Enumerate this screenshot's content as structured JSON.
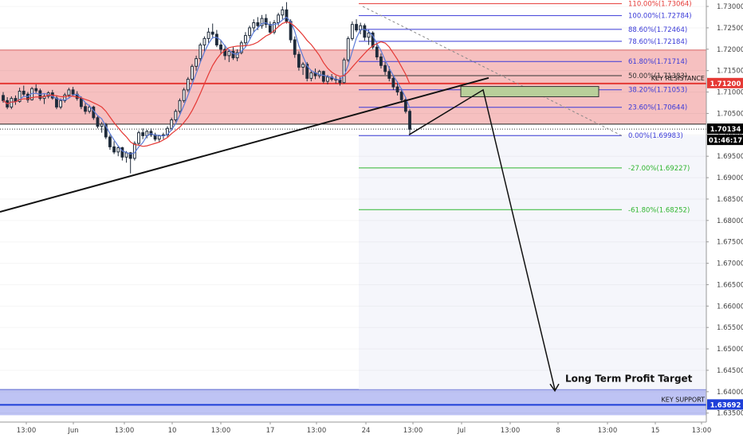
{
  "chart_data": {
    "type": "candlestick",
    "symbol": "",
    "y_range": [
      1.6329,
      1.7315
    ],
    "y_ticks": [
      "1.63500",
      "1.64000",
      "1.64500",
      "1.65000",
      "1.65500",
      "1.66000",
      "1.66500",
      "1.67000",
      "1.67500",
      "1.68000",
      "1.68500",
      "1.69000",
      "1.69500",
      "1.70000",
      "1.70500",
      "1.71000",
      "1.71500",
      "1.72000",
      "1.72500",
      "1.73000"
    ],
    "x_ticks": [
      "13:00",
      "Jun",
      "13:00",
      "10",
      "13:00",
      "17",
      "13:00",
      "24",
      "13:00",
      "Jul",
      "13:00",
      "8",
      "13:00",
      "15",
      "13:00"
    ],
    "price_badges": [
      {
        "label": "1.71200",
        "value": 1.712,
        "color": "#e53935",
        "text_color": "#ffffff"
      },
      {
        "label": "1.70134",
        "value": 1.70134,
        "color": "#000000",
        "text_color": "#ffffff"
      },
      {
        "label": "01:46:17",
        "value": 1.6992,
        "color": "#000000",
        "text_color": "#ffffff"
      },
      {
        "label": "1.63692",
        "value": 1.63692,
        "color": "#1e3fd8",
        "text_color": "#ffffff"
      }
    ],
    "fibonacci_levels": [
      {
        "label": "110.00%(1.73064)",
        "value": 1.73064,
        "color": "#e53935"
      },
      {
        "label": "100.00%(1.72784)",
        "value": 1.72784,
        "color": "#3a3ad8"
      },
      {
        "label": "88.60%(1.72464)",
        "value": 1.72464,
        "color": "#3a3ad8"
      },
      {
        "label": "78.60%(1.72184)",
        "value": 1.72184,
        "color": "#3a3ad8"
      },
      {
        "label": "61.80%(1.71714)",
        "value": 1.71714,
        "color": "#3a3ad8"
      },
      {
        "label": "50.00%(1.71383)",
        "value": 1.71383,
        "color": "#333333"
      },
      {
        "label": "38.20%(1.71053)",
        "value": 1.71053,
        "color": "#3a3ad8"
      },
      {
        "label": "23.60%(1.70644)",
        "value": 1.70644,
        "color": "#3a3ad8"
      },
      {
        "label": "0.00%(1.69983)",
        "value": 1.69983,
        "color": "#3a3ad8"
      },
      {
        "label": "-27.00%(1.69227)",
        "value": 1.69227,
        "color": "#2fb52f"
      },
      {
        "label": "-61.80%(1.68252)",
        "value": 1.68252,
        "color": "#2fb52f"
      }
    ],
    "zones": {
      "resistance": {
        "label": "KEY RESISTANCE",
        "low": 1.7025,
        "high": 1.7198,
        "color": "#f5b5b5",
        "line": 1.712
      },
      "support": {
        "label": "KEY SUPPORT",
        "low": 1.6345,
        "high": 1.6405,
        "color": "#b7bdf3",
        "line": 1.63692
      },
      "entry_box": {
        "low": 1.7089,
        "high": 1.7113,
        "color": "#b9cf9a"
      }
    },
    "annotations": {
      "target_label": "Long Term Profit Target"
    },
    "candles": [
      [
        1.7092,
        1.71,
        1.7075,
        1.708
      ],
      [
        1.708,
        1.7088,
        1.706,
        1.7065
      ],
      [
        1.7065,
        1.709,
        1.706,
        1.7085
      ],
      [
        1.7085,
        1.7092,
        1.707,
        1.7078
      ],
      [
        1.7078,
        1.711,
        1.7075,
        1.7102
      ],
      [
        1.7102,
        1.7115,
        1.709,
        1.7095
      ],
      [
        1.7095,
        1.71,
        1.7075,
        1.7082
      ],
      [
        1.7082,
        1.7112,
        1.708,
        1.7108
      ],
      [
        1.7108,
        1.7118,
        1.7098,
        1.7103
      ],
      [
        1.7103,
        1.7108,
        1.708,
        1.7085
      ],
      [
        1.7085,
        1.7095,
        1.7072,
        1.709
      ],
      [
        1.709,
        1.7102,
        1.7085,
        1.7098
      ],
      [
        1.7098,
        1.7105,
        1.7082,
        1.7086
      ],
      [
        1.7086,
        1.7092,
        1.706,
        1.7065
      ],
      [
        1.7065,
        1.7085,
        1.706,
        1.708
      ],
      [
        1.708,
        1.7098,
        1.7075,
        1.7093
      ],
      [
        1.7093,
        1.711,
        1.7088,
        1.7105
      ],
      [
        1.7105,
        1.7112,
        1.709,
        1.7095
      ],
      [
        1.7095,
        1.7102,
        1.708,
        1.7085
      ],
      [
        1.7085,
        1.709,
        1.706,
        1.7066
      ],
      [
        1.7066,
        1.7075,
        1.7048,
        1.7055
      ],
      [
        1.7055,
        1.707,
        1.705,
        1.7065
      ],
      [
        1.7065,
        1.7068,
        1.7035,
        1.704
      ],
      [
        1.704,
        1.7045,
        1.7015,
        1.702
      ],
      [
        1.702,
        1.703,
        1.7005,
        1.7025
      ],
      [
        1.7025,
        1.7028,
        1.699,
        1.6995
      ],
      [
        1.6995,
        1.7,
        1.6965,
        1.6972
      ],
      [
        1.6972,
        1.6985,
        1.6955,
        1.696
      ],
      [
        1.696,
        1.6975,
        1.695,
        1.697
      ],
      [
        1.697,
        1.6972,
        1.694,
        1.6948
      ],
      [
        1.6948,
        1.6962,
        1.6935,
        1.6958
      ],
      [
        1.6958,
        1.696,
        1.691,
        1.6945
      ],
      [
        1.6945,
        1.6985,
        1.694,
        1.698
      ],
      [
        1.698,
        1.701,
        1.6975,
        1.7005
      ],
      [
        1.7005,
        1.7015,
        1.699,
        1.6998
      ],
      [
        1.6998,
        1.7012,
        1.6992,
        1.7008
      ],
      [
        1.7008,
        1.7015,
        1.6995,
        1.7
      ],
      [
        1.7,
        1.7005,
        1.6985,
        1.699
      ],
      [
        1.699,
        1.7,
        1.6982,
        1.6998
      ],
      [
        1.6998,
        1.7005,
        1.699,
        1.7
      ],
      [
        1.7,
        1.702,
        1.6995,
        1.7015
      ],
      [
        1.7015,
        1.704,
        1.701,
        1.7035
      ],
      [
        1.7035,
        1.706,
        1.703,
        1.7055
      ],
      [
        1.7055,
        1.7085,
        1.705,
        1.708
      ],
      [
        1.708,
        1.711,
        1.7075,
        1.7105
      ],
      [
        1.7105,
        1.7135,
        1.71,
        1.713
      ],
      [
        1.713,
        1.7165,
        1.7125,
        1.716
      ],
      [
        1.716,
        1.7185,
        1.715,
        1.7178
      ],
      [
        1.7178,
        1.7215,
        1.717,
        1.721
      ],
      [
        1.721,
        1.723,
        1.7195,
        1.7225
      ],
      [
        1.7225,
        1.725,
        1.7215,
        1.724
      ],
      [
        1.724,
        1.726,
        1.7225,
        1.7235
      ],
      [
        1.7235,
        1.7245,
        1.7205,
        1.721
      ],
      [
        1.721,
        1.7222,
        1.719,
        1.72
      ],
      [
        1.72,
        1.721,
        1.7175,
        1.7185
      ],
      [
        1.7185,
        1.72,
        1.717,
        1.7195
      ],
      [
        1.7195,
        1.7205,
        1.7175,
        1.718
      ],
      [
        1.718,
        1.72,
        1.7172,
        1.7192
      ],
      [
        1.7192,
        1.722,
        1.7188,
        1.7215
      ],
      [
        1.7215,
        1.724,
        1.7205,
        1.7232
      ],
      [
        1.7232,
        1.7255,
        1.7225,
        1.725
      ],
      [
        1.725,
        1.727,
        1.724,
        1.7262
      ],
      [
        1.7262,
        1.7275,
        1.7245,
        1.7255
      ],
      [
        1.7255,
        1.728,
        1.7248,
        1.7272
      ],
      [
        1.7272,
        1.7282,
        1.725,
        1.7258
      ],
      [
        1.7258,
        1.7265,
        1.7235,
        1.724
      ],
      [
        1.724,
        1.7268,
        1.7235,
        1.7262
      ],
      [
        1.7262,
        1.7285,
        1.7255,
        1.728
      ],
      [
        1.728,
        1.73,
        1.727,
        1.7292
      ],
      [
        1.7292,
        1.731,
        1.726,
        1.7265
      ],
      [
        1.7265,
        1.727,
        1.7215,
        1.7222
      ],
      [
        1.7222,
        1.723,
        1.718,
        1.7188
      ],
      [
        1.7188,
        1.7195,
        1.715,
        1.7158
      ],
      [
        1.7158,
        1.717,
        1.714,
        1.7165
      ],
      [
        1.7165,
        1.717,
        1.7125,
        1.7132
      ],
      [
        1.7132,
        1.715,
        1.7125,
        1.7145
      ],
      [
        1.7145,
        1.7155,
        1.713,
        1.7138
      ],
      [
        1.7138,
        1.7152,
        1.7132,
        1.7148
      ],
      [
        1.7148,
        1.715,
        1.712,
        1.7125
      ],
      [
        1.7125,
        1.714,
        1.7118,
        1.7135
      ],
      [
        1.7135,
        1.7142,
        1.7125,
        1.713
      ],
      [
        1.713,
        1.7138,
        1.712,
        1.7128
      ],
      [
        1.7128,
        1.7135,
        1.7115,
        1.7122
      ],
      [
        1.7122,
        1.718,
        1.712,
        1.7175
      ],
      [
        1.7175,
        1.723,
        1.717,
        1.7225
      ],
      [
        1.7225,
        1.7265,
        1.722,
        1.7258
      ],
      [
        1.7258,
        1.727,
        1.724,
        1.7245
      ],
      [
        1.7245,
        1.7262,
        1.7235,
        1.7255
      ],
      [
        1.7255,
        1.726,
        1.722,
        1.7228
      ],
      [
        1.7228,
        1.7245,
        1.721,
        1.7238
      ],
      [
        1.7238,
        1.7242,
        1.72,
        1.7205
      ],
      [
        1.7205,
        1.7215,
        1.7175,
        1.7182
      ],
      [
        1.7182,
        1.719,
        1.7155,
        1.7162
      ],
      [
        1.7162,
        1.717,
        1.714,
        1.7148
      ],
      [
        1.7148,
        1.716,
        1.7125,
        1.7132
      ],
      [
        1.7132,
        1.714,
        1.7105,
        1.7112
      ],
      [
        1.7112,
        1.7125,
        1.7092,
        1.71
      ],
      [
        1.71,
        1.7108,
        1.7075,
        1.7082
      ],
      [
        1.7082,
        1.7088,
        1.705,
        1.7055
      ],
      [
        1.7055,
        1.706,
        1.7002,
        1.7013
      ]
    ]
  }
}
